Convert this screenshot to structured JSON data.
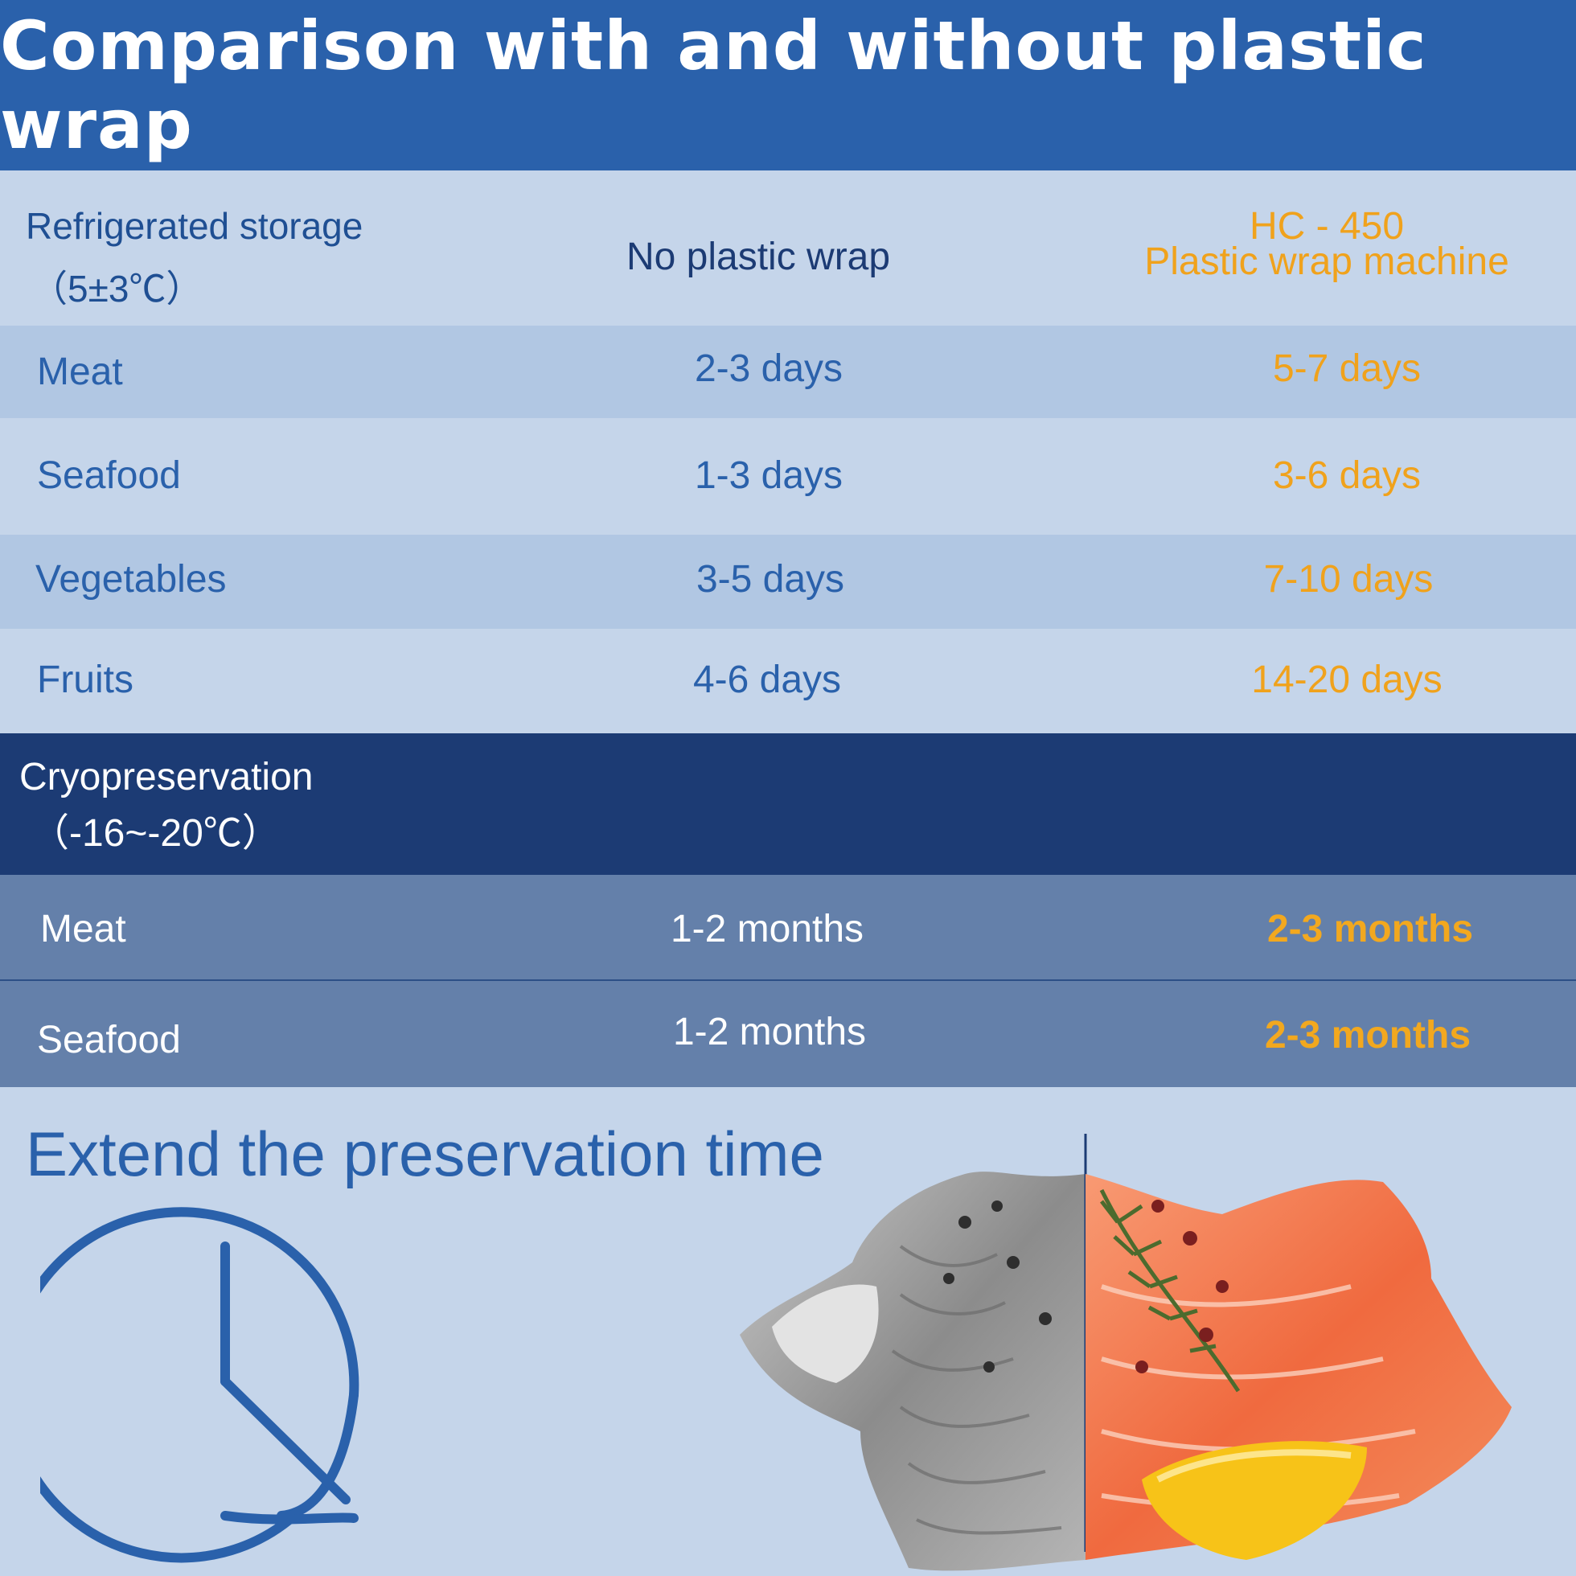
{
  "header": {
    "title": "Comparison with and without plastic wrap"
  },
  "refrigerated": {
    "label_line1": "Refrigerated storage",
    "label_line2": "（5±3℃）",
    "col_no_wrap": "No plastic wrap",
    "col_machine_line1": "HC - 450",
    "col_machine_line2": "Plastic wrap machine",
    "rows": [
      {
        "food": "Meat",
        "no_wrap": "2-3 days",
        "machine": "5-7 days"
      },
      {
        "food": "Seafood",
        "no_wrap": "1-3 days",
        "machine": "3-6 days"
      },
      {
        "food": "Vegetables",
        "no_wrap": "3-5 days",
        "machine": "7-10 days"
      },
      {
        "food": "Fruits",
        "no_wrap": "4-6 days",
        "machine": "14-20 days"
      }
    ]
  },
  "cryo": {
    "label_line1": "Cryopreservation",
    "label_line2": "（-16~-20℃）",
    "rows": [
      {
        "food": "Meat",
        "no_wrap": "1-2 months",
        "machine": "2-3 months"
      },
      {
        "food": "Seafood",
        "no_wrap": "1-2 months",
        "machine": "2-3 months"
      }
    ]
  },
  "bottom": {
    "title": "Extend the preservation time"
  },
  "colors": {
    "header_blue": "#2a61ab",
    "dark_navy": "#1c3b74",
    "accent_orange": "#f0a21c",
    "row_light": "#c5d5ea",
    "row_mid": "#b1c7e3",
    "row_steel": "#6480aa"
  },
  "icons": {
    "clock": "clock-icon",
    "salmon": "salmon-comparison-image"
  }
}
